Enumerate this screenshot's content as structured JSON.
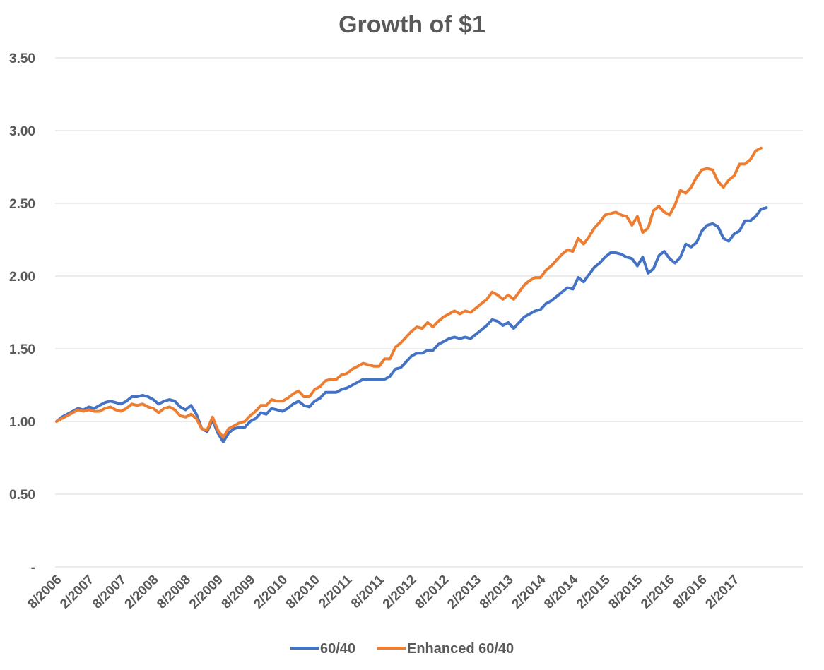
{
  "chart_data": {
    "type": "line",
    "title": "Growth of $1",
    "xlabel": "",
    "ylabel": "",
    "ylim": [
      0,
      3.5
    ],
    "grid": true,
    "legend_position": "bottom",
    "y_ticks": [
      {
        "value": 0,
        "label": "-"
      },
      {
        "value": 0.5,
        "label": "0.50"
      },
      {
        "value": 1.0,
        "label": "1.00"
      },
      {
        "value": 1.5,
        "label": "1.50"
      },
      {
        "value": 2.0,
        "label": "2.00"
      },
      {
        "value": 2.5,
        "label": "2.50"
      },
      {
        "value": 3.0,
        "label": "3.00"
      },
      {
        "value": 3.5,
        "label": "3.50"
      }
    ],
    "x_tick_labels": [
      "8/2006",
      "2/2007",
      "8/2007",
      "2/2008",
      "8/2008",
      "2/2009",
      "8/2009",
      "2/2010",
      "8/2010",
      "2/2011",
      "8/2011",
      "2/2012",
      "8/2012",
      "2/2013",
      "8/2013",
      "2/2014",
      "8/2014",
      "2/2015",
      "8/2015",
      "2/2016",
      "8/2016",
      "2/2017"
    ],
    "x_start": "8/2006",
    "x_end": "7/2017",
    "series": [
      {
        "name": "60/40",
        "color": "#4472C4",
        "values": [
          1.0,
          1.03,
          1.05,
          1.07,
          1.09,
          1.08,
          1.1,
          1.09,
          1.11,
          1.13,
          1.14,
          1.13,
          1.12,
          1.14,
          1.17,
          1.17,
          1.18,
          1.17,
          1.15,
          1.12,
          1.14,
          1.15,
          1.14,
          1.1,
          1.08,
          1.11,
          1.05,
          0.95,
          0.93,
          1.01,
          0.92,
          0.86,
          0.92,
          0.95,
          0.96,
          0.96,
          1.0,
          1.02,
          1.06,
          1.05,
          1.09,
          1.08,
          1.07,
          1.09,
          1.12,
          1.14,
          1.11,
          1.1,
          1.14,
          1.16,
          1.2,
          1.2,
          1.2,
          1.22,
          1.23,
          1.25,
          1.27,
          1.29,
          1.29,
          1.29,
          1.29,
          1.29,
          1.31,
          1.36,
          1.37,
          1.41,
          1.45,
          1.47,
          1.47,
          1.49,
          1.49,
          1.53,
          1.55,
          1.57,
          1.58,
          1.57,
          1.58,
          1.57,
          1.6,
          1.63,
          1.66,
          1.7,
          1.69,
          1.66,
          1.68,
          1.64,
          1.68,
          1.72,
          1.74,
          1.76,
          1.77,
          1.81,
          1.83,
          1.86,
          1.89,
          1.92,
          1.91,
          1.99,
          1.96,
          2.01,
          2.06,
          2.09,
          2.13,
          2.16,
          2.16,
          2.15,
          2.13,
          2.12,
          2.07,
          2.13,
          2.02,
          2.05,
          2.14,
          2.17,
          2.12,
          2.09,
          2.13,
          2.22,
          2.2,
          2.23,
          2.31,
          2.35,
          2.36,
          2.34,
          2.26,
          2.24,
          2.29,
          2.31,
          2.38,
          2.38,
          2.41,
          2.46,
          2.47
        ]
      },
      {
        "name": "Enhanced 60/40",
        "color": "#ED7D31",
        "values": [
          1.0,
          1.02,
          1.04,
          1.06,
          1.08,
          1.07,
          1.08,
          1.07,
          1.07,
          1.09,
          1.1,
          1.08,
          1.07,
          1.09,
          1.12,
          1.11,
          1.12,
          1.1,
          1.09,
          1.06,
          1.09,
          1.1,
          1.08,
          1.04,
          1.03,
          1.05,
          1.02,
          0.95,
          0.94,
          1.03,
          0.94,
          0.89,
          0.95,
          0.97,
          0.99,
          1.0,
          1.04,
          1.07,
          1.11,
          1.11,
          1.15,
          1.14,
          1.14,
          1.16,
          1.19,
          1.21,
          1.17,
          1.17,
          1.22,
          1.24,
          1.28,
          1.29,
          1.29,
          1.32,
          1.33,
          1.36,
          1.38,
          1.4,
          1.39,
          1.38,
          1.38,
          1.43,
          1.43,
          1.51,
          1.54,
          1.58,
          1.62,
          1.65,
          1.64,
          1.68,
          1.65,
          1.69,
          1.72,
          1.74,
          1.76,
          1.74,
          1.76,
          1.75,
          1.78,
          1.81,
          1.84,
          1.89,
          1.87,
          1.84,
          1.87,
          1.84,
          1.89,
          1.94,
          1.97,
          1.99,
          1.99,
          2.04,
          2.07,
          2.11,
          2.15,
          2.18,
          2.17,
          2.26,
          2.22,
          2.27,
          2.33,
          2.37,
          2.42,
          2.43,
          2.44,
          2.42,
          2.41,
          2.35,
          2.41,
          2.3,
          2.33,
          2.45,
          2.48,
          2.44,
          2.42,
          2.49,
          2.59,
          2.57,
          2.61,
          2.68,
          2.73,
          2.74,
          2.73,
          2.65,
          2.61,
          2.66,
          2.69,
          2.77,
          2.77,
          2.8,
          2.86,
          2.88
        ]
      }
    ]
  }
}
